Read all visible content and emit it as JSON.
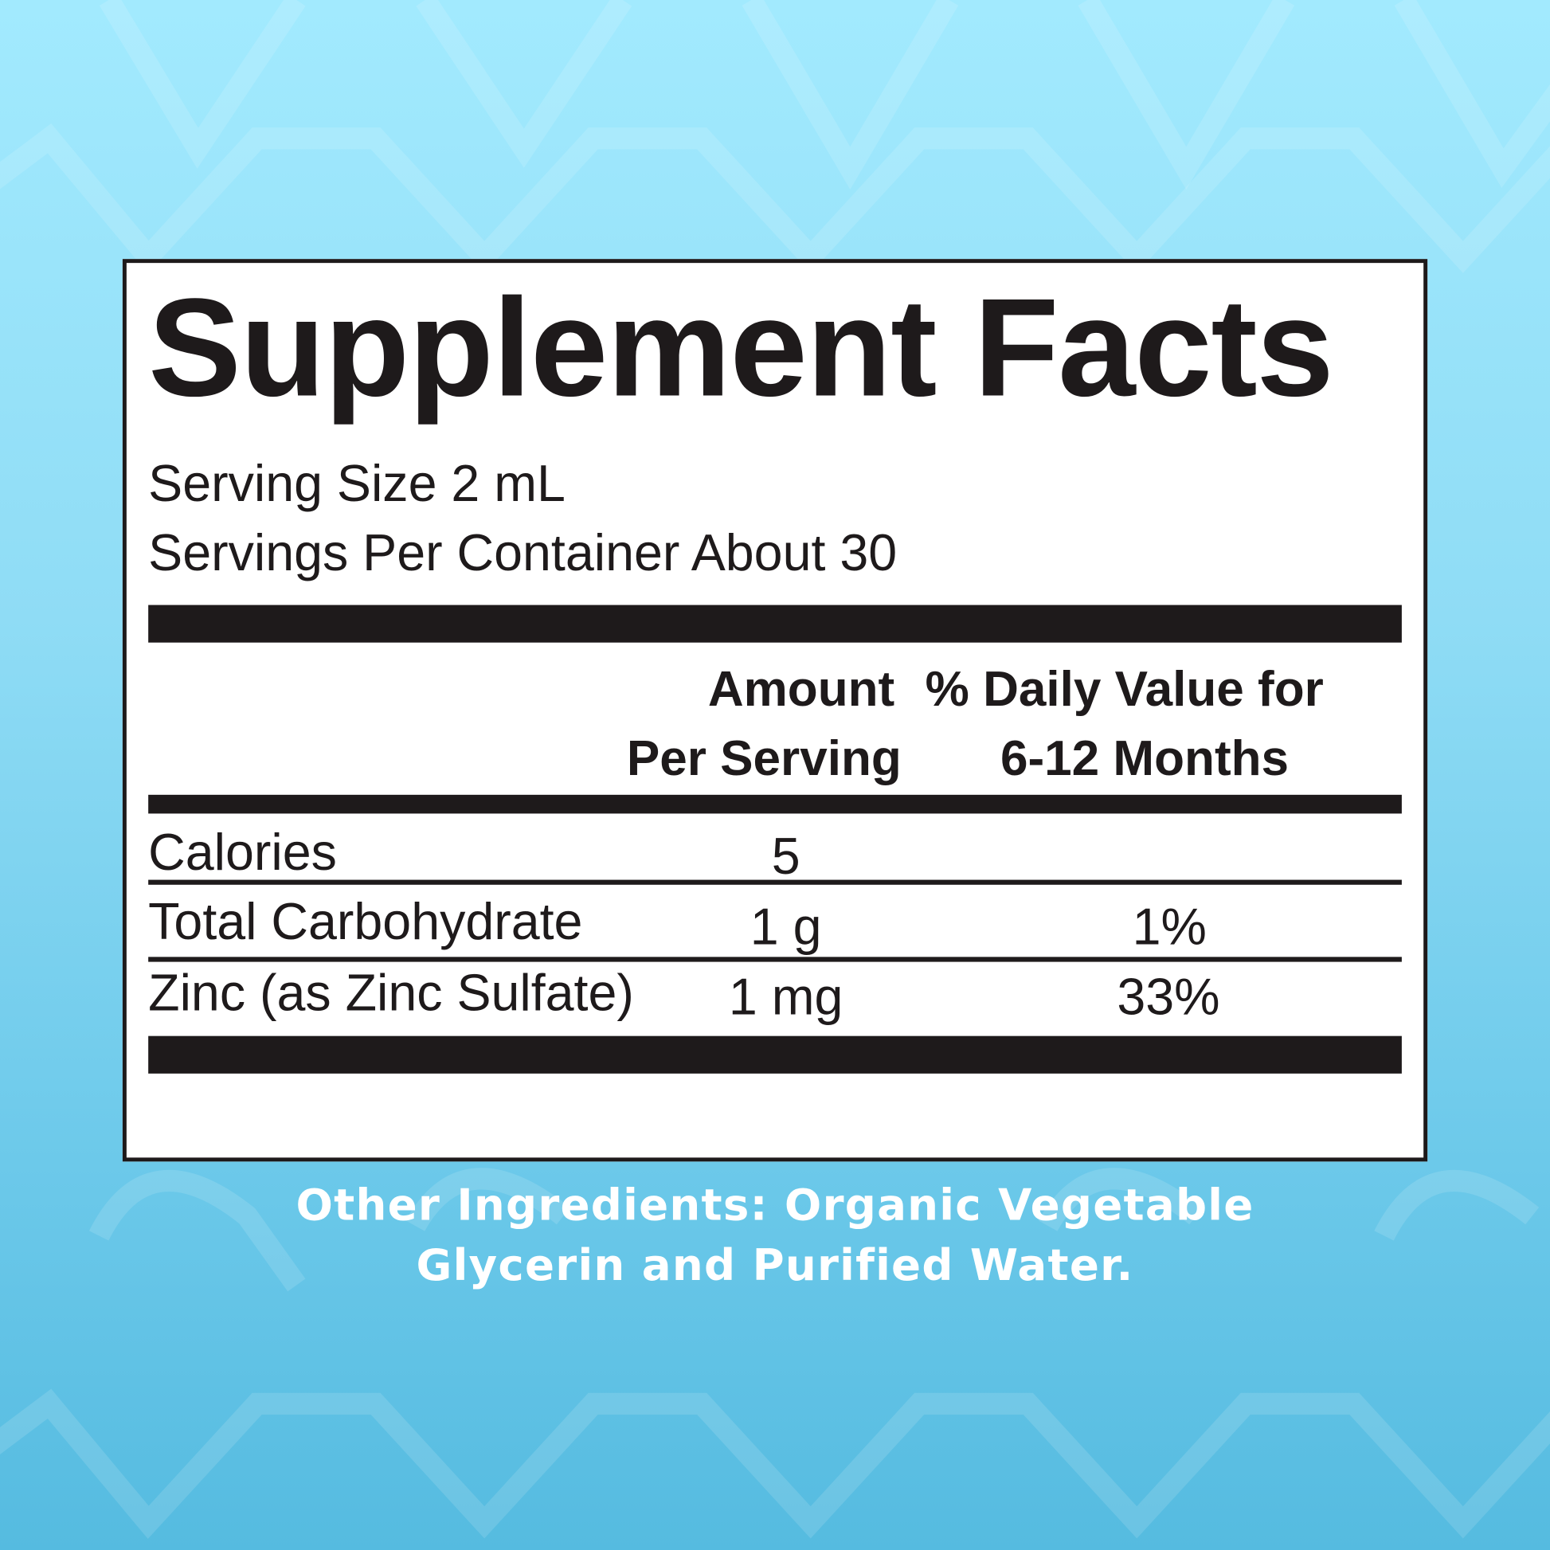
{
  "label": {
    "title": "Supplement Facts",
    "serving_size": "Serving Size 2 mL",
    "servings_per_container": "Servings Per Container About 30",
    "header": {
      "amount_line1": "Amount",
      "amount_line2": "Per Serving",
      "dv_line1": "% Daily Value for",
      "dv_line2": "6-12 Months"
    },
    "rows": [
      {
        "name": "Calories",
        "amount": "5",
        "dv": ""
      },
      {
        "name": "Total Carbohydrate",
        "amount": "1 g",
        "dv": "1%"
      },
      {
        "name": "Zinc (as Zinc Sulfate)",
        "amount": "1 mg",
        "dv": "33%"
      }
    ]
  },
  "other_ingredients": {
    "line1": "Other Ingredients: Organic Vegetable",
    "line2": "Glycerin and Purified Water."
  },
  "colors": {
    "background_top": "#a2eafe",
    "background_bottom": "#55bbe0",
    "text": "#1e1a1b"
  }
}
